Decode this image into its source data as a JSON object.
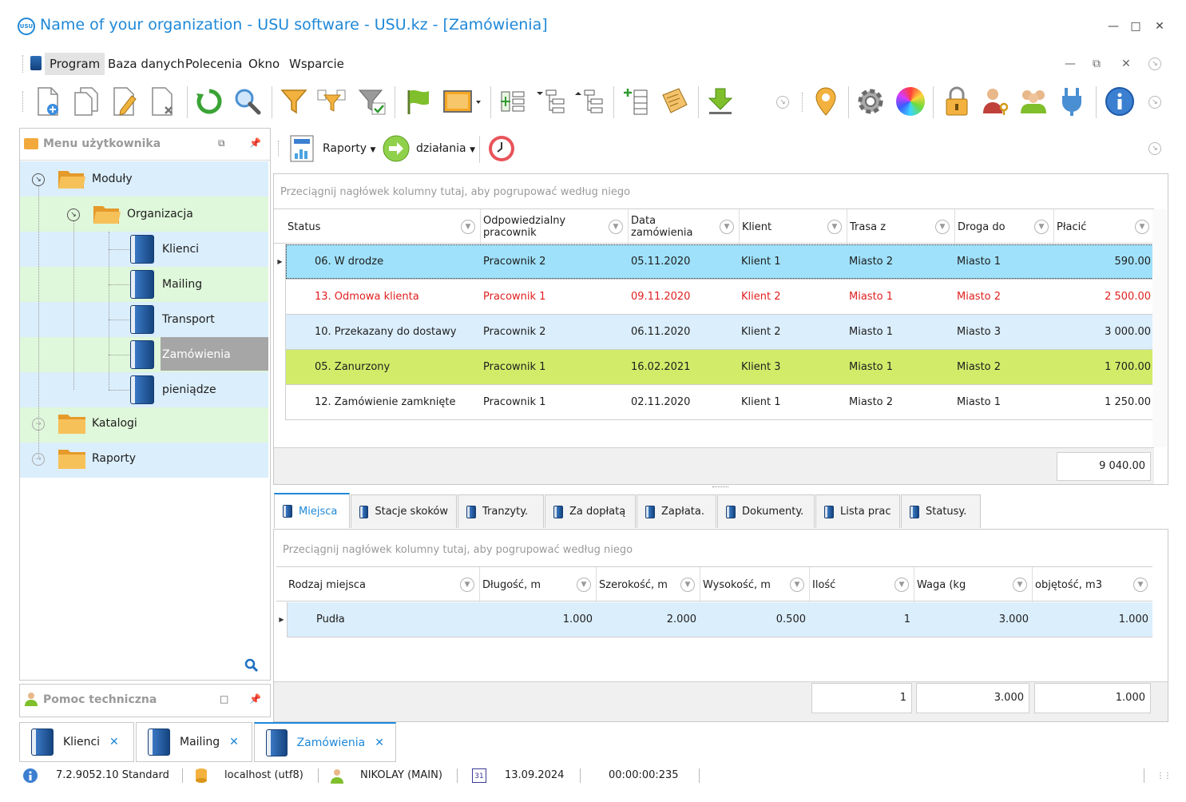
{
  "window": {
    "title": "Name of your organization - USU software - USU.kz - [Zamówienia]",
    "logo_text": "USU"
  },
  "menu": {
    "items": [
      "Program",
      "Baza danych",
      "Polecenia",
      "Okno",
      "Wsparcie"
    ]
  },
  "left_panel": {
    "title": "Menu użytkownika",
    "tree": {
      "moduly": "Moduły",
      "organizacja": "Organizacja",
      "klienci": "Klienci",
      "mailing": "Mailing",
      "transport": "Transport",
      "zamowienia": "Zamówienia",
      "pieniadze": "pieniądze",
      "katalogi": "Katalogi",
      "raporty": "Raporty"
    }
  },
  "help_panel": {
    "title": "Pomoc techniczna"
  },
  "right_toolbar": {
    "reports": "Raporty",
    "actions": "działania"
  },
  "main_grid": {
    "group_hint": "Przeciągnij nagłówek kolumny tutaj, aby pogrupować według niego",
    "columns": {
      "status": "Status",
      "employee_l1": "Odpowiedzialny",
      "employee_l2": "pracownik",
      "date_l1": "Data",
      "date_l2": "zamówienia",
      "client": "Klient",
      "route_from": "Trasa z",
      "route_to": "Droga do",
      "pay": "Płacić"
    },
    "rows": [
      {
        "status": "06. W drodze",
        "employee": "Pracownik 2",
        "date": "05.11.2020",
        "client": "Klient 1",
        "from": "Miasto 2",
        "to": "Miasto 1",
        "pay": "590.00"
      },
      {
        "status": "13. Odmowa klienta",
        "employee": "Pracownik 1",
        "date": "09.11.2020",
        "client": "Klient 2",
        "from": "Miasto 1",
        "to": "Miasto 2",
        "pay": "2 500.00"
      },
      {
        "status": "10. Przekazany do dostawy",
        "employee": "Pracownik 2",
        "date": "06.11.2020",
        "client": "Klient 2",
        "from": "Miasto 1",
        "to": "Miasto 3",
        "pay": "3 000.00"
      },
      {
        "status": "05. Zanurzony",
        "employee": "Pracownik 1",
        "date": "16.02.2021",
        "client": "Klient 3",
        "from": "Miasto 1",
        "to": "Miasto 2",
        "pay": "1 700.00"
      },
      {
        "status": "12. Zamówienie zamknięte",
        "employee": "Pracownik 1",
        "date": "02.11.2020",
        "client": "Klient 1",
        "from": "Miasto 2",
        "to": "Miasto 1",
        "pay": "1 250.00"
      }
    ],
    "total": "9 040.00"
  },
  "tabs": [
    "Miejsca",
    "Stacje skoków",
    "Tranzyty.",
    "Za dopłatą",
    "Zapłata.",
    "Dokumenty.",
    "Lista prac",
    "Statusy."
  ],
  "sub_grid": {
    "group_hint": "Przeciągnij nagłówek kolumny tutaj, aby pogrupować według niego",
    "columns": {
      "place_type": "Rodzaj miejsca",
      "length": "Długość, m",
      "width": "Szerokość, m",
      "height": "Wysokość, m",
      "qty": "Ilość",
      "weight": "Waga (kg",
      "volume": "objętość, m3"
    },
    "row": {
      "place_type": "Pudła",
      "length": "1.000",
      "width": "2.000",
      "height": "0.500",
      "qty": "1",
      "weight": "3.000",
      "volume": "1.000"
    },
    "sums": {
      "qty": "1",
      "weight": "3.000",
      "volume": "1.000"
    }
  },
  "doc_tabs": [
    "Klienci",
    "Mailing",
    "Zamówienia"
  ],
  "statusbar": {
    "version": "7.2.9052.10 Standard",
    "db": "localhost (utf8)",
    "user": "NIKOLAY (MAIN)",
    "calendar_day": "31",
    "date": "13.09.2024",
    "timer": "00:00:00:235"
  },
  "colors": {
    "accent": "#1e88d8",
    "row_selected": "#9fe1fa",
    "row_blue": "#dbeefc",
    "row_green": "#d2ec6a",
    "row_red_text": "#e02020"
  }
}
